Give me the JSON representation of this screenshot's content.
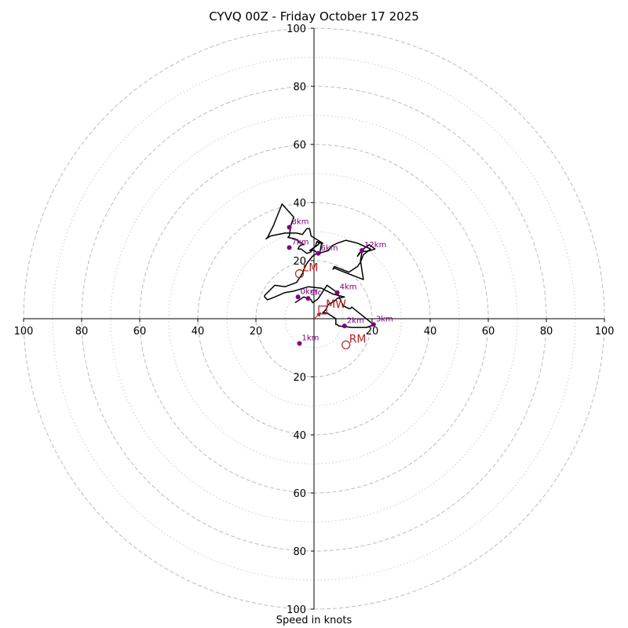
{
  "chart_data": {
    "type": "hodograph",
    "title": "CYVQ 00Z - Friday October 17 2025",
    "xlabel": "Speed in knots",
    "range": 100,
    "major_rings": [
      20,
      40,
      60,
      80,
      100
    ],
    "minor_rings": [
      10,
      30,
      50,
      70,
      90
    ],
    "tick_labels": {
      "top": [
        "20",
        "40",
        "60",
        "80",
        "100"
      ],
      "bottom": [
        "20",
        "40",
        "60",
        "80",
        "100"
      ],
      "left": [
        "20",
        "40",
        "60",
        "80",
        "100"
      ],
      "right": [
        "20",
        "40",
        "60",
        "80",
        "100"
      ]
    },
    "hodograph_line": [
      [
        -6.5,
        5.5
      ],
      [
        -3.5,
        7.5
      ],
      [
        -1,
        6.5
      ],
      [
        -0.5,
        5.5
      ],
      [
        1,
        6.5
      ],
      [
        1.5,
        7
      ],
      [
        4.5,
        11.5
      ],
      [
        8,
        9
      ],
      [
        10,
        4.5
      ],
      [
        12,
        3.5
      ],
      [
        12.5,
        3.5
      ],
      [
        13,
        4
      ],
      [
        20.5,
        -2
      ],
      [
        19.5,
        -2.5
      ],
      [
        18,
        -3
      ],
      [
        13,
        -3
      ],
      [
        8.5,
        -2.5
      ],
      [
        8,
        -2
      ],
      [
        7.5,
        -2
      ],
      [
        7.5,
        0
      ],
      [
        4.5,
        2
      ],
      [
        3,
        2
      ],
      [
        3.5,
        2.5
      ],
      [
        4,
        3
      ],
      [
        5,
        5
      ],
      [
        7,
        6
      ],
      [
        8,
        7
      ],
      [
        10.5,
        7.5
      ],
      [
        6.5,
        8.5
      ],
      [
        2.5,
        10.5
      ],
      [
        -2,
        11
      ],
      [
        -7,
        9.5
      ],
      [
        -10,
        9
      ],
      [
        -13.5,
        7.5
      ],
      [
        -16,
        6.5
      ],
      [
        -17,
        7.5
      ],
      [
        -17,
        8
      ],
      [
        -13.5,
        11.5
      ],
      [
        -10,
        11
      ],
      [
        -6,
        12.5
      ],
      [
        -4,
        15.5
      ],
      [
        -3.5,
        17
      ],
      [
        -2.5,
        19
      ],
      [
        -0.5,
        21.5
      ],
      [
        1,
        22.5
      ],
      [
        2,
        22.5
      ],
      [
        2.5,
        25.5
      ],
      [
        3,
        26
      ],
      [
        1,
        26.5
      ],
      [
        0.5,
        25
      ],
      [
        -0.5,
        24
      ],
      [
        -1,
        23.5
      ],
      [
        -1,
        23
      ],
      [
        -2.5,
        22.5
      ],
      [
        -4.5,
        24
      ],
      [
        -5.5,
        24
      ],
      [
        -5,
        25
      ],
      [
        -4,
        25.5
      ],
      [
        -3.5,
        25.5
      ],
      [
        -6.5,
        27.5
      ],
      [
        -9,
        28
      ],
      [
        -8.5,
        28.5
      ],
      [
        -8,
        32
      ],
      [
        -7,
        35
      ],
      [
        -11,
        39.5
      ],
      [
        -14,
        32
      ],
      [
        -16,
        28
      ],
      [
        -16.5,
        27.5
      ],
      [
        -15,
        28.5
      ],
      [
        -10,
        29.5
      ],
      [
        -6,
        29.5
      ],
      [
        -4,
        29
      ],
      [
        -2.5,
        31
      ],
      [
        -1.5,
        31
      ],
      [
        -1,
        28.5
      ],
      [
        3,
        26
      ],
      [
        1.5,
        26
      ],
      [
        1.5,
        25.5
      ],
      [
        -1.5,
        23.5
      ],
      [
        0,
        23.5
      ],
      [
        1.5,
        22.5
      ],
      [
        5,
        23.5
      ],
      [
        6,
        25
      ],
      [
        8,
        26
      ],
      [
        11,
        27
      ],
      [
        15,
        26
      ],
      [
        19.5,
        24
      ],
      [
        17,
        22
      ],
      [
        16,
        19.5
      ],
      [
        15,
        18
      ],
      [
        12,
        16
      ],
      [
        7,
        18
      ],
      [
        6.5,
        17
      ],
      [
        7,
        17.5
      ],
      [
        8,
        17
      ],
      [
        10.5,
        16
      ],
      [
        17,
        13.5
      ],
      [
        16,
        20
      ],
      [
        16.5,
        23
      ],
      [
        19.5,
        23.5
      ],
      [
        21,
        24
      ],
      [
        19,
        25.5
      ],
      [
        17,
        24
      ],
      [
        15.5,
        22.5
      ],
      [
        15,
        21.5
      ],
      [
        16.5,
        23.5
      ]
    ],
    "height_points": [
      {
        "label": "0km",
        "u": -5.5,
        "v": 7.5
      },
      {
        "label": "sfc",
        "u": -2,
        "v": 7
      },
      {
        "label": "1km",
        "u": -5,
        "v": -8.5
      },
      {
        "label": "2km",
        "u": 10.5,
        "v": -2.5
      },
      {
        "label": "3km",
        "u": 20.5,
        "v": -2
      },
      {
        "label": "4km",
        "u": 8,
        "v": 9
      },
      {
        "label": "6km",
        "u": 1.5,
        "v": 22.5
      },
      {
        "label": "7km",
        "u": -8.5,
        "v": 24.5
      },
      {
        "label": "8km",
        "u": -8.5,
        "v": 31.5
      },
      {
        "label": "12km",
        "u": 16.5,
        "v": 23.5
      }
    ],
    "motion_markers": [
      {
        "label": "LM",
        "u": -5,
        "v": 15.5,
        "shape": "circle"
      },
      {
        "label": "MW",
        "u": 3,
        "v": 3,
        "shape": "square"
      },
      {
        "label": "RM",
        "u": 11,
        "v": -9,
        "shape": "circle"
      }
    ],
    "colors": {
      "grid": "#bbbbbb",
      "axis": "#000000",
      "hodograph": "#000000",
      "points": "#800080",
      "markers": "#b22222"
    }
  }
}
